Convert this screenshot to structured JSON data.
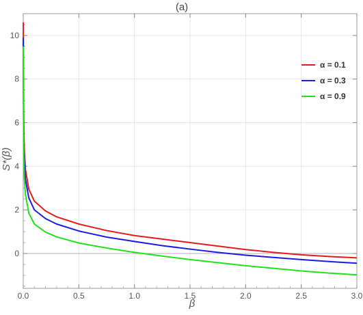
{
  "chart_data": {
    "type": "line",
    "title": "(a)",
    "xlabel": "β",
    "ylabel": "S*(β)",
    "xlim": [
      0,
      3.0
    ],
    "ylim": [
      -1.6,
      11
    ],
    "xticks": [
      0.0,
      0.5,
      1.0,
      1.5,
      2.0,
      2.5,
      3.0
    ],
    "xtick_labels": [
      "0.0",
      "0.5",
      "1.0",
      "1.5",
      "2.0",
      "2.5",
      "3.0"
    ],
    "yticks": [
      0,
      2,
      4,
      6,
      8,
      10
    ],
    "ytick_labels": [
      "0",
      "2",
      "4",
      "6",
      "8",
      "10"
    ],
    "grid": true,
    "legend_position": "top-right",
    "series": [
      {
        "name": "α = 0.1",
        "color": "#e31a1c",
        "x": [
          0.0005,
          0.001,
          0.002,
          0.005,
          0.01,
          0.02,
          0.05,
          0.1,
          0.2,
          0.3,
          0.5,
          0.75,
          1.0,
          1.25,
          1.5,
          1.75,
          2.0,
          2.25,
          2.5,
          2.75,
          3.0
        ],
        "y": [
          10.6,
          9.0,
          7.6,
          5.8,
          4.7,
          3.85,
          2.95,
          2.4,
          1.95,
          1.68,
          1.35,
          1.05,
          0.82,
          0.66,
          0.5,
          0.34,
          0.18,
          0.05,
          -0.06,
          -0.14,
          -0.2
        ]
      },
      {
        "name": "α = 0.3",
        "color": "#1a1ae6",
        "x": [
          0.0005,
          0.001,
          0.002,
          0.005,
          0.01,
          0.02,
          0.05,
          0.1,
          0.2,
          0.3,
          0.5,
          0.75,
          1.0,
          1.25,
          1.5,
          1.75,
          2.0,
          2.25,
          2.5,
          2.75,
          3.0
        ],
        "y": [
          9.9,
          8.3,
          7.0,
          5.3,
          4.2,
          3.4,
          2.55,
          2.0,
          1.6,
          1.35,
          1.03,
          0.75,
          0.55,
          0.36,
          0.2,
          0.05,
          -0.08,
          -0.18,
          -0.28,
          -0.37,
          -0.45
        ]
      },
      {
        "name": "α = 0.9",
        "color": "#22e01a",
        "x": [
          0.0005,
          0.001,
          0.002,
          0.005,
          0.01,
          0.02,
          0.05,
          0.1,
          0.2,
          0.3,
          0.5,
          0.75,
          1.0,
          1.25,
          1.5,
          1.75,
          2.0,
          2.25,
          2.5,
          2.75,
          3.0
        ],
        "y": [
          9.5,
          7.8,
          6.3,
          4.5,
          3.45,
          2.7,
          1.85,
          1.35,
          0.98,
          0.76,
          0.48,
          0.25,
          0.05,
          -0.12,
          -0.28,
          -0.42,
          -0.56,
          -0.68,
          -0.8,
          -0.9,
          -0.98
        ]
      }
    ]
  }
}
